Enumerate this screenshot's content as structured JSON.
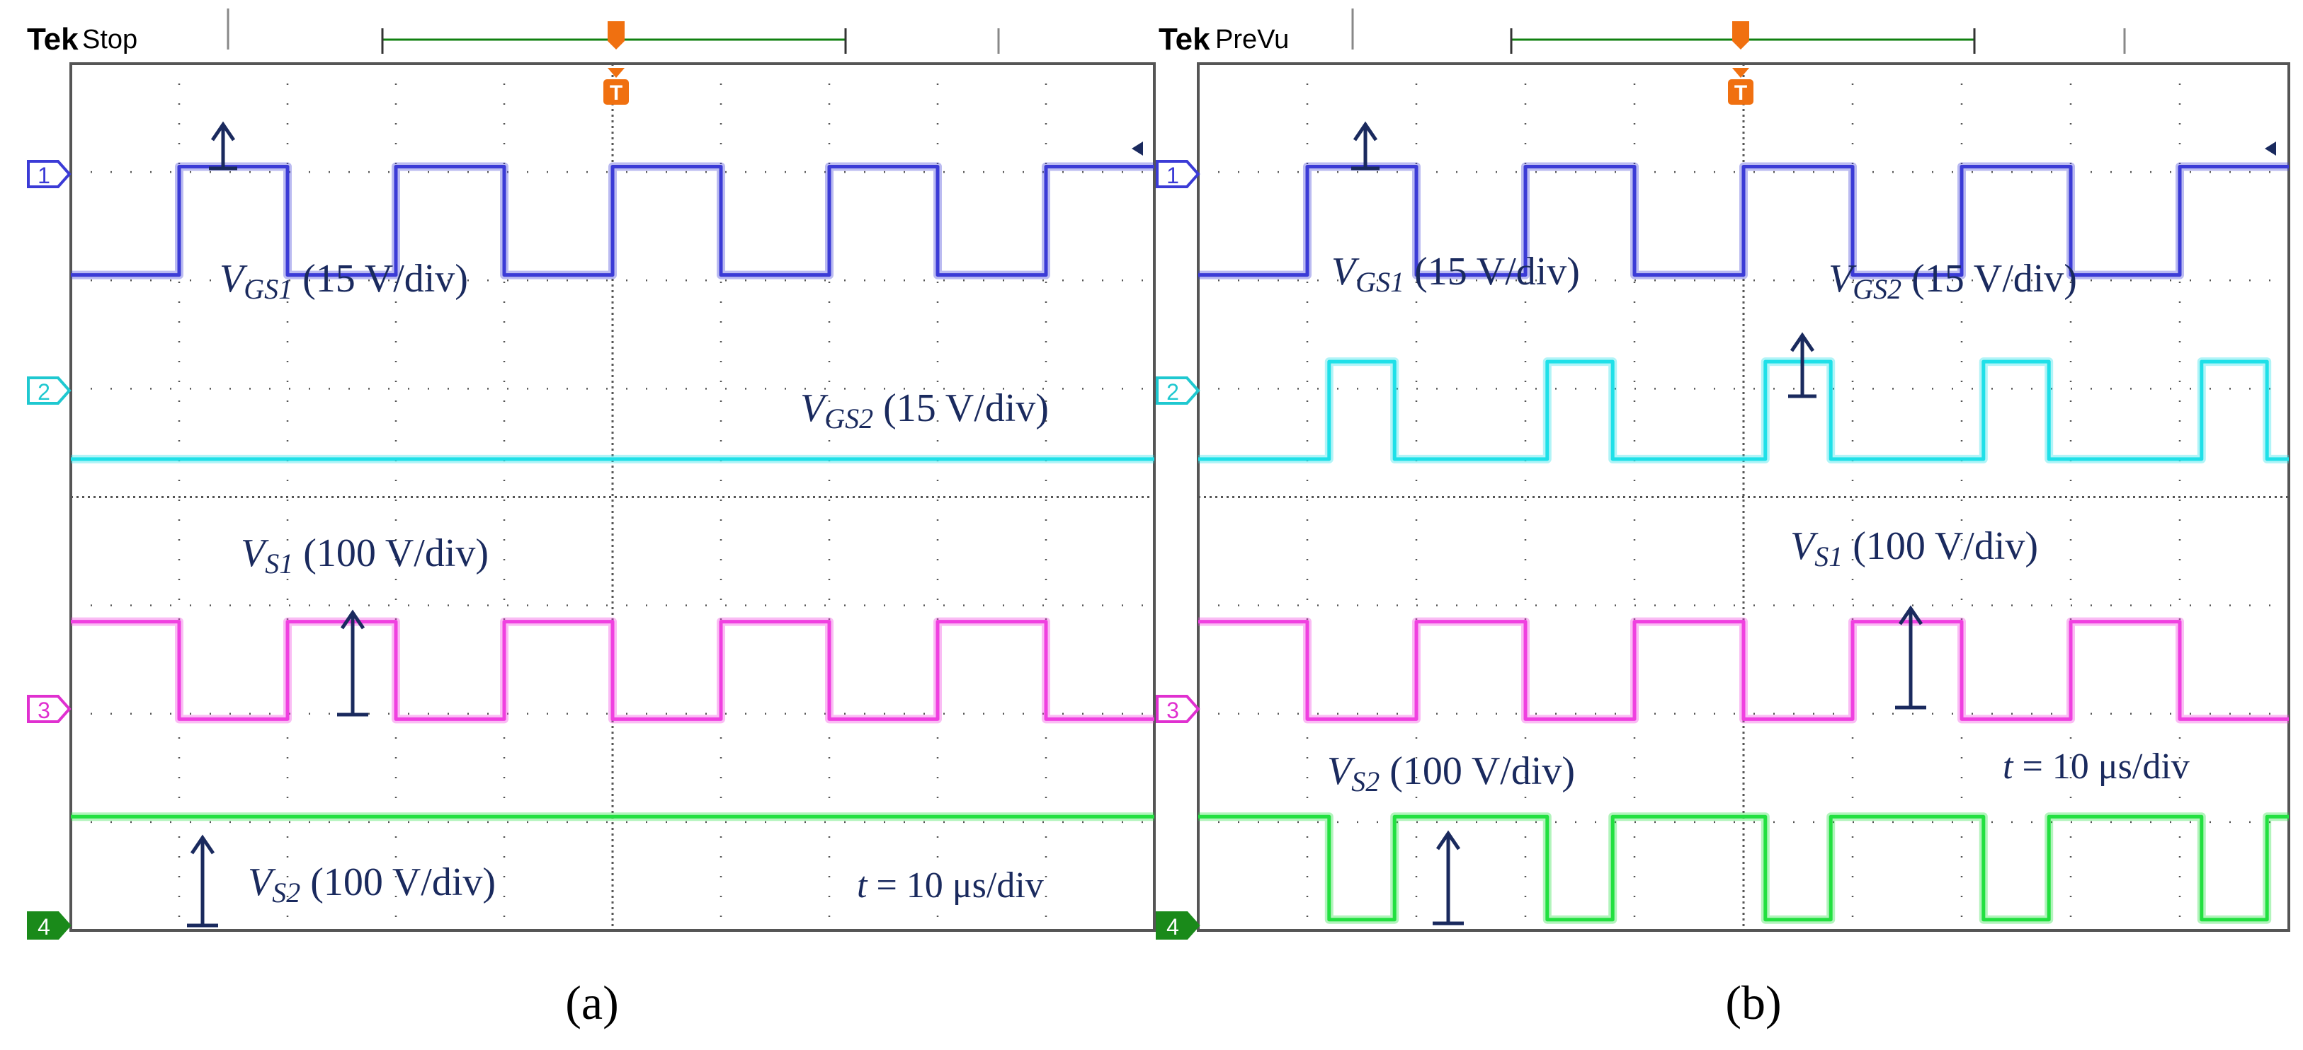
{
  "panels": [
    {
      "id": "a",
      "brand": "Tek",
      "mode": "Stop",
      "caption": "(a)",
      "channel_markers": [
        "1",
        "2",
        "3",
        "4"
      ],
      "trigger_marker": "T",
      "labels": [
        {
          "id": "vgs1",
          "main": "V",
          "sub": "GS1",
          "rest": " (15 V/div)"
        },
        {
          "id": "vgs2",
          "main": "V",
          "sub": "GS2",
          "rest": " (15 V/div)"
        },
        {
          "id": "vs1",
          "main": "V",
          "sub": "S1",
          "rest": " (100 V/div)"
        },
        {
          "id": "vs2",
          "main": "V",
          "sub": "S2",
          "rest": " (100 V/div)"
        },
        {
          "id": "time",
          "main": "t",
          "sub": "",
          "rest": " = 10 μs/div"
        }
      ]
    },
    {
      "id": "b",
      "brand": "Tek",
      "mode": "PreVu",
      "caption": "(b)",
      "channel_markers": [
        "1",
        "2",
        "3",
        "4"
      ],
      "trigger_marker": "T",
      "labels": [
        {
          "id": "vgs1",
          "main": "V",
          "sub": "GS1",
          "rest": " (15 V/div)"
        },
        {
          "id": "vgs2",
          "main": "V",
          "sub": "GS2",
          "rest": " (15 V/div)"
        },
        {
          "id": "vs1",
          "main": "V",
          "sub": "S1",
          "rest": " (100 V/div)"
        },
        {
          "id": "vs2",
          "main": "V",
          "sub": "S2",
          "rest": " (100 V/div)"
        },
        {
          "id": "time",
          "main": "t",
          "sub": "",
          "rest": " = 10 μs/div"
        }
      ]
    }
  ],
  "colors": {
    "ch1": "#3b3bd6",
    "ch2": "#1fe0e8",
    "ch3": "#f040e0",
    "ch4": "#22e040",
    "label": "#1a2a5e",
    "trigger": "#f07010",
    "record_bar": "#108010",
    "grid": "#555555"
  },
  "chart_data": [
    {
      "type": "line",
      "title": "(a)",
      "xlabel": "t = 10 μs/div",
      "x_unit": "div",
      "xlim": [
        0,
        10
      ],
      "ylim": [
        0,
        8
      ],
      "series": [
        {
          "name": "VGS1 (15 V/div)",
          "channel": 1,
          "low_div": 6.05,
          "high_div": 7.05,
          "edges_div": [
            1.0,
            2.0,
            3.0,
            4.0,
            5.0,
            6.0,
            7.0,
            8.0,
            9.0
          ],
          "start_level": "low"
        },
        {
          "name": "VGS2 (15 V/div)",
          "channel": 2,
          "low_div": 4.35,
          "high_div": 4.35,
          "edges_div": [],
          "start_level": "low"
        },
        {
          "name": "VS1 (100 V/div)",
          "channel": 3,
          "low_div": 1.95,
          "high_div": 2.85,
          "edges_div": [
            1.0,
            2.0,
            3.0,
            4.0,
            5.0,
            6.0,
            7.0,
            8.0,
            9.0
          ],
          "start_level": "high"
        },
        {
          "name": "VS2 (100 V/div)",
          "channel": 4,
          "low_div": 1.05,
          "high_div": 1.05,
          "edges_div": [],
          "start_level": "low"
        }
      ]
    },
    {
      "type": "line",
      "title": "(b)",
      "xlabel": "t = 10 μs/div",
      "x_unit": "div",
      "xlim": [
        0,
        10
      ],
      "ylim": [
        0,
        8
      ],
      "series": [
        {
          "name": "VGS1 (15 V/div)",
          "channel": 1,
          "low_div": 6.05,
          "high_div": 7.05,
          "edges_div": [
            1.0,
            2.0,
            3.0,
            4.0,
            5.0,
            6.0,
            7.0,
            8.0,
            9.0
          ],
          "start_level": "low"
        },
        {
          "name": "VGS2 (15 V/div)",
          "channel": 2,
          "low_div": 4.35,
          "high_div": 5.25,
          "edges_div": [
            1.2,
            1.8,
            3.2,
            3.8,
            5.2,
            5.8,
            7.2,
            7.8,
            9.2,
            9.8
          ],
          "start_level": "low"
        },
        {
          "name": "VS1 (100 V/div)",
          "channel": 3,
          "low_div": 1.95,
          "high_div": 2.85,
          "edges_div": [
            1.0,
            2.0,
            3.0,
            4.0,
            5.0,
            6.0,
            7.0,
            8.0,
            9.0
          ],
          "start_level": "high"
        },
        {
          "name": "VS2 (100 V/div)",
          "channel": 4,
          "low_div": 0.1,
          "high_div": 1.05,
          "edges_div": [
            1.2,
            1.8,
            3.2,
            3.8,
            5.2,
            5.8,
            7.2,
            7.8,
            9.2,
            9.8
          ],
          "start_level": "high"
        }
      ]
    }
  ]
}
